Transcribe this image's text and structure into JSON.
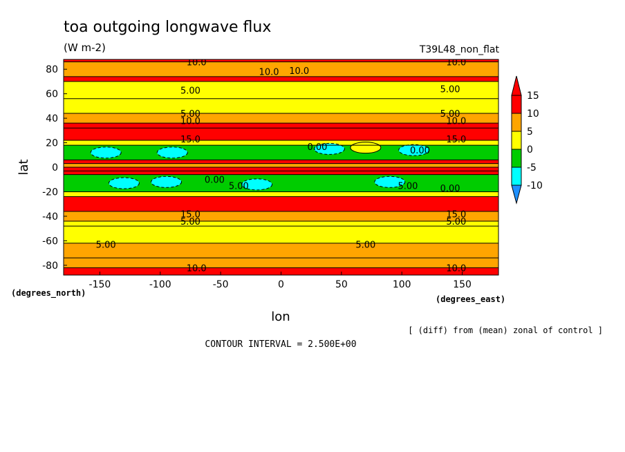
{
  "chart_data": {
    "type": "heatmap",
    "title": "toa outgoing longwave flux",
    "units": "(W m-2)",
    "run_label": "T39L48_non_flat",
    "xlabel": "lon",
    "ylabel": "lat",
    "x_unit_label": "(degrees_east)",
    "y_unit_label": "(degrees_north)",
    "xlim": [
      -180,
      180
    ],
    "ylim": [
      -88,
      88
    ],
    "x_ticks": [
      -150,
      -100,
      -50,
      0,
      50,
      100,
      150
    ],
    "y_ticks": [
      -80,
      -60,
      -40,
      -20,
      0,
      20,
      40,
      60,
      80
    ],
    "colorbar": {
      "levels": [
        -10,
        -5,
        0,
        5,
        10,
        15
      ],
      "colors": [
        "#1e90ff",
        "#00ffff",
        "#00cc00",
        "#ffff00",
        "#ffa500",
        "#ff0000"
      ],
      "tick_labels": [
        "15",
        "10",
        "5",
        "0",
        "-5",
        "-10"
      ]
    },
    "zonal_bands": [
      {
        "lat_from": 86,
        "lat_to": 88,
        "value": 12.5
      },
      {
        "lat_from": 74,
        "lat_to": 86,
        "value": 7.5
      },
      {
        "lat_from": 70,
        "lat_to": 74,
        "value": 12.5
      },
      {
        "lat_from": 56,
        "lat_to": 70,
        "value": 2.5
      },
      {
        "lat_from": 44,
        "lat_to": 56,
        "value": 2.5
      },
      {
        "lat_from": 36,
        "lat_to": 44,
        "value": 7.5
      },
      {
        "lat_from": 32,
        "lat_to": 36,
        "value": 12.5
      },
      {
        "lat_from": 22,
        "lat_to": 32,
        "value": 17.5
      },
      {
        "lat_from": 18,
        "lat_to": 22,
        "value": 2.5
      },
      {
        "lat_from": 6,
        "lat_to": 18,
        "value": -2.5
      },
      {
        "lat_from": 3,
        "lat_to": 6,
        "value": 12.5
      },
      {
        "lat_from": 0,
        "lat_to": 3,
        "value": 7.5
      },
      {
        "lat_from": -3,
        "lat_to": 0,
        "value": 17.5
      },
      {
        "lat_from": -6,
        "lat_to": -3,
        "value": 12.5
      },
      {
        "lat_from": -20,
        "lat_to": -6,
        "value": -2.5
      },
      {
        "lat_from": -24,
        "lat_to": -20,
        "value": 2.5
      },
      {
        "lat_from": -36,
        "lat_to": -24,
        "value": 17.5
      },
      {
        "lat_from": -44,
        "lat_to": -36,
        "value": 7.5
      },
      {
        "lat_from": -48,
        "lat_to": -44,
        "value": 2.5
      },
      {
        "lat_from": -62,
        "lat_to": -48,
        "value": 2.5
      },
      {
        "lat_from": -74,
        "lat_to": -62,
        "value": 7.5
      },
      {
        "lat_from": -82,
        "lat_to": -74,
        "value": 7.5
      },
      {
        "lat_from": -88,
        "lat_to": -82,
        "value": 12.5
      }
    ],
    "minima_patches": [
      {
        "lon": -145,
        "lat": 12,
        "value": -7.5
      },
      {
        "lon": -90,
        "lat": 12,
        "value": -7.5
      },
      {
        "lon": 40,
        "lat": 15,
        "value": -7.5
      },
      {
        "lon": 110,
        "lat": 14,
        "value": -7.5
      },
      {
        "lon": -130,
        "lat": -13,
        "value": -7.5
      },
      {
        "lon": -95,
        "lat": -12,
        "value": -7.5
      },
      {
        "lon": 90,
        "lat": -12,
        "value": -7.5
      },
      {
        "lon": -20,
        "lat": -14,
        "value": -7.5
      },
      {
        "lon": 70,
        "lat": 16,
        "value": 2.5
      }
    ],
    "contour_labels": [
      {
        "lon": -70,
        "lat": 86,
        "text": "10.0"
      },
      {
        "lon": 145,
        "lat": 86,
        "text": "10.0"
      },
      {
        "lon": -10,
        "lat": 78,
        "text": "10.0"
      },
      {
        "lon": 15,
        "lat": 79,
        "text": "10.0"
      },
      {
        "lon": -75,
        "lat": 63,
        "text": "5.00"
      },
      {
        "lon": 140,
        "lat": 64,
        "text": "5.00"
      },
      {
        "lon": -75,
        "lat": 44,
        "text": "5.00"
      },
      {
        "lon": 140,
        "lat": 44,
        "text": "5.00"
      },
      {
        "lon": -75,
        "lat": 38,
        "text": "10.0"
      },
      {
        "lon": 145,
        "lat": 38,
        "text": "10.0"
      },
      {
        "lon": -75,
        "lat": 23,
        "text": "15.0"
      },
      {
        "lon": 145,
        "lat": 23,
        "text": "15.0"
      },
      {
        "lon": 30,
        "lat": 17,
        "text": "0.00"
      },
      {
        "lon": 115,
        "lat": 14,
        "text": "0.00"
      },
      {
        "lon": -55,
        "lat": -10,
        "text": "0.00"
      },
      {
        "lon": -35,
        "lat": -15,
        "text": "5.00"
      },
      {
        "lon": 105,
        "lat": -15,
        "text": "5.00"
      },
      {
        "lon": 140,
        "lat": -17,
        "text": "0.00"
      },
      {
        "lon": -75,
        "lat": -38,
        "text": "15.0"
      },
      {
        "lon": 145,
        "lat": -38,
        "text": "15.0"
      },
      {
        "lon": -75,
        "lat": -44,
        "text": "5.00"
      },
      {
        "lon": 145,
        "lat": -44,
        "text": "5.00"
      },
      {
        "lon": -145,
        "lat": -63,
        "text": "5.00"
      },
      {
        "lon": 70,
        "lat": -63,
        "text": "5.00"
      },
      {
        "lon": -70,
        "lat": -82,
        "text": "10.0"
      },
      {
        "lon": 145,
        "lat": -82,
        "text": "10.0"
      }
    ]
  },
  "footer": {
    "contour_interval": "CONTOUR INTERVAL = 2.500E+00",
    "note": "[ (diff) from (mean) zonal of control ]"
  }
}
